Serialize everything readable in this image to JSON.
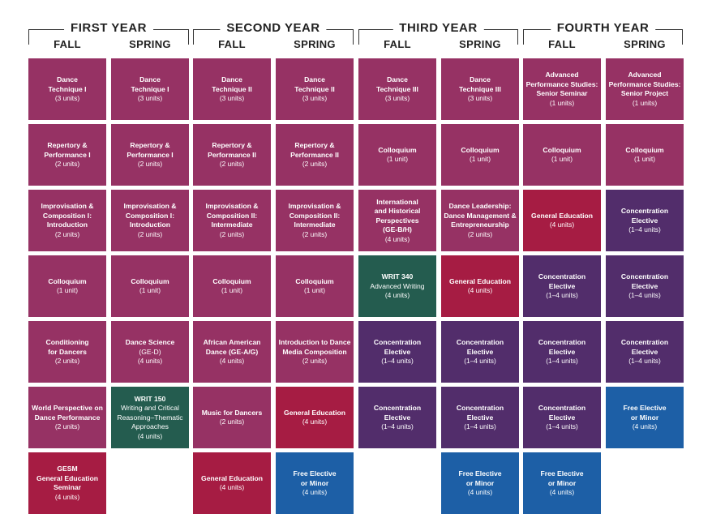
{
  "years": [
    {
      "title": "FIRST YEAR",
      "semesters": [
        "FALL",
        "SPRING"
      ]
    },
    {
      "title": "SECOND YEAR",
      "semesters": [
        "FALL",
        "SPRING"
      ]
    },
    {
      "title": "THIRD YEAR",
      "semesters": [
        "FALL",
        "SPRING"
      ]
    },
    {
      "title": "FOURTH YEAR",
      "semesters": [
        "FALL",
        "SPRING"
      ]
    }
  ],
  "colors": {
    "maroon": "#963264",
    "red": "#a61c43",
    "purple": "#522d6b",
    "green": "#245c4f",
    "blue": "#1d5fa6"
  },
  "columns": [
    [
      {
        "title": [
          "Dance",
          "Technique I"
        ],
        "units": "(3 units)",
        "color": "maroon"
      },
      {
        "title": [
          "Repertory &",
          "Performance I"
        ],
        "units": "(2 units)",
        "color": "maroon"
      },
      {
        "title": [
          "Improvisation &",
          "Composition I:",
          "Introduction"
        ],
        "units": "(2 units)",
        "color": "maroon"
      },
      {
        "title": [
          "Colloquium"
        ],
        "units": "(1 unit)",
        "color": "maroon"
      },
      {
        "title": [
          "Conditioning",
          "for Dancers"
        ],
        "units": "(2 units)",
        "color": "maroon"
      },
      {
        "title": [
          "World Perspective on",
          "Dance Performance"
        ],
        "units": "(2 units)",
        "color": "maroon"
      },
      {
        "title": [
          "GESM",
          "General Education",
          "Seminar"
        ],
        "units": "(4 units)",
        "color": "red"
      }
    ],
    [
      {
        "title": [
          "Dance",
          "Technique I"
        ],
        "units": "(3 units)",
        "color": "maroon"
      },
      {
        "title": [
          "Repertory &",
          "Performance I"
        ],
        "units": "(2 units)",
        "color": "maroon"
      },
      {
        "title": [
          "Improvisation &",
          "Composition I:",
          "Introduction"
        ],
        "units": "(2 units)",
        "color": "maroon"
      },
      {
        "title": [
          "Colloquium"
        ],
        "units": "(1 unit)",
        "color": "maroon"
      },
      {
        "title": [
          "Dance Science"
        ],
        "sub": [
          "(GE-D)"
        ],
        "units": "(4 units)",
        "color": "maroon"
      },
      {
        "title": [
          "WRIT 150"
        ],
        "sub": [
          "Writing and Critical",
          "Reasoning–Thematic",
          "Approaches"
        ],
        "units": "(4 units)",
        "color": "green"
      },
      null
    ],
    [
      {
        "title": [
          "Dance",
          "Technique II"
        ],
        "units": "(3 units)",
        "color": "maroon"
      },
      {
        "title": [
          "Repertory &",
          "Performance II"
        ],
        "units": "(2 units)",
        "color": "maroon"
      },
      {
        "title": [
          "Improvisation &",
          "Composition II:",
          "Intermediate"
        ],
        "units": "(2 units)",
        "color": "maroon"
      },
      {
        "title": [
          "Colloquium"
        ],
        "units": "(1 unit)",
        "color": "maroon"
      },
      {
        "title": [
          "African American",
          "Dance (GE-A/G)"
        ],
        "units": "(4 units)",
        "color": "maroon"
      },
      {
        "title": [
          "Music for Dancers"
        ],
        "units": "(2 units)",
        "color": "maroon"
      },
      {
        "title": [
          "General Education"
        ],
        "units": "(4 units)",
        "color": "red"
      }
    ],
    [
      {
        "title": [
          "Dance",
          "Technique II"
        ],
        "units": "(3 units)",
        "color": "maroon"
      },
      {
        "title": [
          "Repertory &",
          "Performance II"
        ],
        "units": "(2 units)",
        "color": "maroon"
      },
      {
        "title": [
          "Improvisation &",
          "Composition II:",
          "Intermediate"
        ],
        "units": "(2 units)",
        "color": "maroon"
      },
      {
        "title": [
          "Colloquium"
        ],
        "units": "(1 unit)",
        "color": "maroon"
      },
      {
        "title": [
          "Introduction to Dance",
          "Media Composition"
        ],
        "units": "(2 units)",
        "color": "maroon"
      },
      {
        "title": [
          "General Education"
        ],
        "units": "(4 units)",
        "color": "red"
      },
      {
        "title": [
          "Free Elective",
          "or Minor"
        ],
        "units": "(4 units)",
        "color": "blue"
      }
    ],
    [
      {
        "title": [
          "Dance",
          "Technique III"
        ],
        "units": "(3 units)",
        "color": "maroon"
      },
      {
        "title": [
          "Colloquium"
        ],
        "units": "(1 unit)",
        "color": "maroon"
      },
      {
        "title": [
          "International",
          "and Historical",
          "Perspectives",
          "(GE-B/H)"
        ],
        "units": "(4 units)",
        "color": "maroon"
      },
      {
        "title": [
          "WRIT 340"
        ],
        "sub": [
          "Advanced Writing"
        ],
        "units": "(4 units)",
        "color": "green"
      },
      {
        "title": [
          "Concentration",
          "Elective"
        ],
        "units": "(1–4 units)",
        "color": "purple"
      },
      {
        "title": [
          "Concentration",
          "Elective"
        ],
        "units": "(1–4 units)",
        "color": "purple"
      },
      null
    ],
    [
      {
        "title": [
          "Dance",
          "Technique III"
        ],
        "units": "(3 units)",
        "color": "maroon"
      },
      {
        "title": [
          "Colloquium"
        ],
        "units": "(1 unit)",
        "color": "maroon"
      },
      {
        "title": [
          "Dance Leadership:",
          "Dance Management &",
          "Entrepreneurship"
        ],
        "units": "(2 units)",
        "color": "maroon"
      },
      {
        "title": [
          "General Education"
        ],
        "units": "(4 units)",
        "color": "red"
      },
      {
        "title": [
          "Concentration",
          "Elective"
        ],
        "units": "(1–4 units)",
        "color": "purple"
      },
      {
        "title": [
          "Concentration",
          "Elective"
        ],
        "units": "(1–4 units)",
        "color": "purple"
      },
      {
        "title": [
          "Free Elective",
          "or Minor"
        ],
        "units": "(4 units)",
        "color": "blue"
      }
    ],
    [
      {
        "title": [
          "Advanced",
          "Performance Studies:",
          "Senior Seminar"
        ],
        "units": "(1 units)",
        "color": "maroon"
      },
      {
        "title": [
          "Colloquium"
        ],
        "units": "(1 unit)",
        "color": "maroon"
      },
      {
        "title": [
          "General Education"
        ],
        "units": "(4 units)",
        "color": "red"
      },
      {
        "title": [
          "Concentration",
          "Elective"
        ],
        "units": "(1–4 units)",
        "color": "purple"
      },
      {
        "title": [
          "Concentration",
          "Elective"
        ],
        "units": "(1–4 units)",
        "color": "purple"
      },
      {
        "title": [
          "Concentration",
          "Elective"
        ],
        "units": "(1–4 units)",
        "color": "purple"
      },
      {
        "title": [
          "Free Elective",
          "or Minor"
        ],
        "units": "(4 units)",
        "color": "blue"
      }
    ],
    [
      {
        "title": [
          "Advanced",
          "Performance Studies:",
          "Senior Project"
        ],
        "units": "(1 units)",
        "color": "maroon"
      },
      {
        "title": [
          "Colloquium"
        ],
        "units": "(1 unit)",
        "color": "maroon"
      },
      {
        "title": [
          "Concentration",
          "Elective"
        ],
        "units": "(1–4 units)",
        "color": "purple"
      },
      {
        "title": [
          "Concentration",
          "Elective"
        ],
        "units": "(1–4 units)",
        "color": "purple"
      },
      {
        "title": [
          "Concentration",
          "Elective"
        ],
        "units": "(1–4 units)",
        "color": "purple"
      },
      {
        "title": [
          "Free Elective",
          "or Minor"
        ],
        "units": "(4 units)",
        "color": "blue"
      },
      null
    ]
  ]
}
